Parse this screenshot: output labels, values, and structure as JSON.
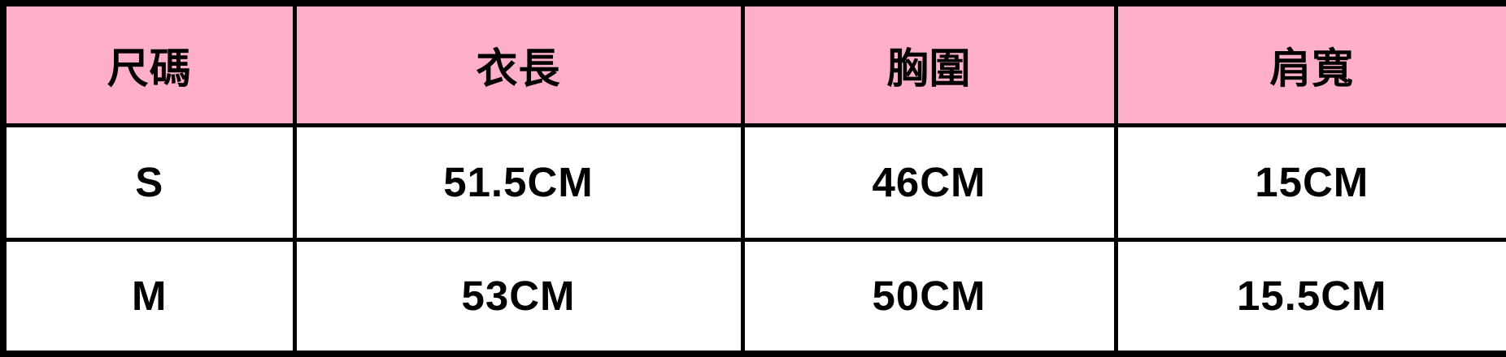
{
  "colors": {
    "header-bg": "#FFAFC9",
    "cell-bg": "#FFFFFF",
    "border": "#000000",
    "text": "#000000"
  },
  "chart_data": {
    "type": "table",
    "columns": [
      "尺碼",
      "衣長",
      "胸圍",
      "肩寬"
    ],
    "rows": [
      [
        "S",
        "51.5CM",
        "46CM",
        "15CM"
      ],
      [
        "M",
        "53CM",
        "50CM",
        "15.5CM"
      ]
    ]
  }
}
